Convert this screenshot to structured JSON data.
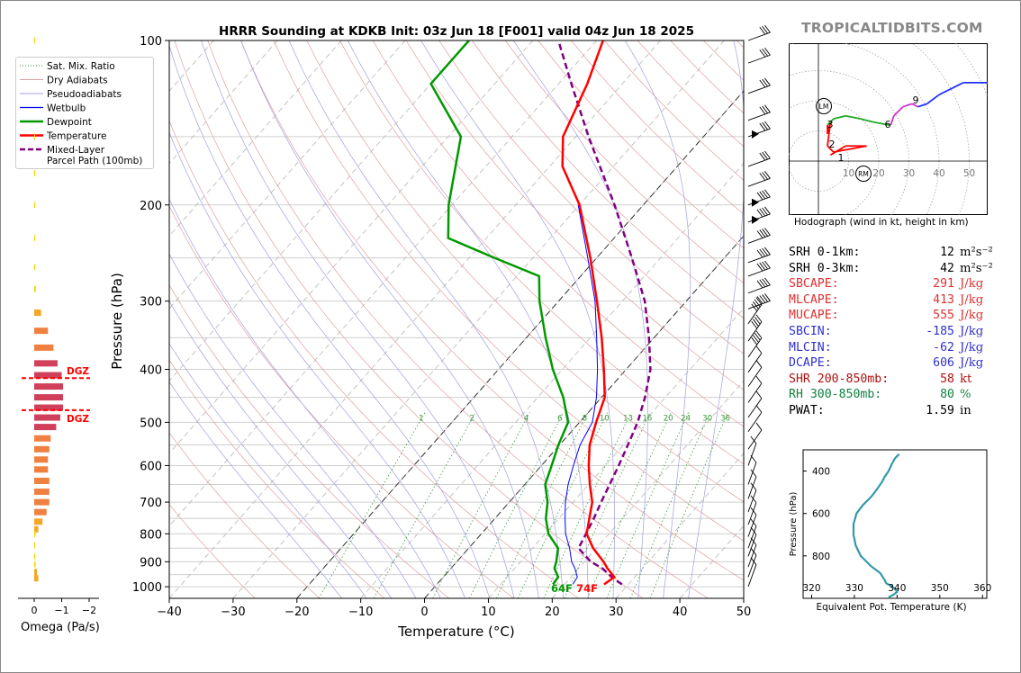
{
  "header": {
    "title": "HRRR Sounding at KDKB Init: 03z Jun 18 [F001] valid 04z Jun 18 2025",
    "brand": "TROPICALTIDBITS.COM"
  },
  "legend": {
    "items": [
      {
        "label": "Sat. Mix. Ratio",
        "color": "#2e8b2e",
        "style": "dotted"
      },
      {
        "label": "Dry Adiabats",
        "color": "#d08080",
        "style": "solid-thin"
      },
      {
        "label": "Pseudoadiabats",
        "color": "#8080d0",
        "style": "solid-thin"
      },
      {
        "label": "Wetbulb",
        "color": "#0000ff",
        "style": "solid"
      },
      {
        "label": "Dewpoint",
        "color": "#009900",
        "style": "solid-thick"
      },
      {
        "label": "Temperature",
        "color": "#ff0000",
        "style": "solid-thick"
      },
      {
        "label": "Mixed-Layer\nParcel Path (100mb)",
        "color": "#800080",
        "style": "dashed"
      }
    ]
  },
  "omega": {
    "xlabel": "Omega (Pa/s)",
    "ticks": [
      "0",
      "−1",
      "−2"
    ],
    "dgz_label": "DGZ"
  },
  "chart_data": [
    {
      "type": "line",
      "title": "HRRR Sounding at KDKB Init: 03z Jun 18 [F001] valid 04z Jun 18 2025",
      "xlabel": "Temperature (°C)",
      "ylabel": "Pressure (hPa)",
      "x_ticks": [
        "−40",
        "−30",
        "−20",
        "−10",
        "0",
        "10",
        "20",
        "30",
        "40",
        "50"
      ],
      "y_ticks": [
        "100",
        "200",
        "300",
        "400",
        "500",
        "600",
        "700",
        "800",
        "900",
        "1000"
      ],
      "xlim": [
        -40,
        50
      ],
      "ylim": [
        1050,
        100
      ],
      "y_scale": "log",
      "skew": true,
      "grid": true,
      "legend_position": "left-outside",
      "surface_labels": {
        "dewpoint": "64F",
        "temperature": "74F"
      },
      "mixing_ratio_labels": [
        "1",
        "2",
        "4",
        "6",
        "8",
        "10",
        "13",
        "16",
        "20",
        "24",
        "30",
        "36"
      ],
      "series": [
        {
          "name": "Temperature",
          "color": "#ff0000",
          "points": [
            [
              990,
              26.2
            ],
            [
              960,
              26.8
            ],
            [
              925,
              24.5
            ],
            [
              900,
              23.0
            ],
            [
              850,
              19.5
            ],
            [
              800,
              16.5
            ],
            [
              750,
              14.8
            ],
            [
              700,
              13.0
            ],
            [
              650,
              10.2
            ],
            [
              600,
              7.4
            ],
            [
              550,
              4.7
            ],
            [
              500,
              2.6
            ],
            [
              450,
              0.5
            ],
            [
              400,
              -3.5
            ],
            [
              350,
              -8.2
            ],
            [
              300,
              -14.0
            ],
            [
              250,
              -21.0
            ],
            [
              200,
              -30.0
            ],
            [
              170,
              -38.0
            ],
            [
              150,
              -42.0
            ],
            [
              120,
              -45.5
            ],
            [
              100,
              -49.0
            ]
          ]
        },
        {
          "name": "Dewpoint",
          "color": "#009900",
          "points": [
            [
              990,
              18.2
            ],
            [
              960,
              18.0
            ],
            [
              925,
              16.2
            ],
            [
              900,
              15.6
            ],
            [
              850,
              14.0
            ],
            [
              800,
              10.5
            ],
            [
              750,
              8.0
            ],
            [
              700,
              6.0
            ],
            [
              650,
              3.2
            ],
            [
              600,
              1.6
            ],
            [
              550,
              -0.2
            ],
            [
              500,
              -1.8
            ],
            [
              450,
              -6.0
            ],
            [
              400,
              -11.5
            ],
            [
              350,
              -17.0
            ],
            [
              300,
              -23.0
            ],
            [
              270,
              -26.5
            ],
            [
              250,
              -36.0
            ],
            [
              230,
              -46.0
            ],
            [
              200,
              -50.5
            ],
            [
              150,
              -58.0
            ],
            [
              120,
              -70.0
            ],
            [
              100,
              -70.0
            ]
          ]
        },
        {
          "name": "Wetbulb",
          "color": "#0000ff",
          "points": [
            [
              990,
              21.3
            ],
            [
              960,
              21.0
            ],
            [
              925,
              19.4
            ],
            [
              900,
              18.0
            ],
            [
              850,
              15.8
            ],
            [
              800,
              13.2
            ],
            [
              750,
              11.0
            ],
            [
              700,
              8.8
            ],
            [
              650,
              6.8
            ],
            [
              600,
              5.0
            ],
            [
              550,
              3.2
            ],
            [
              500,
              2.0
            ],
            [
              450,
              -0.8
            ],
            [
              400,
              -4.5
            ],
            [
              350,
              -9.0
            ],
            [
              300,
              -14.3
            ],
            [
              250,
              -21.4
            ],
            [
              200,
              -30.2
            ]
          ]
        },
        {
          "name": "Mixed-Layer\nParcel Path (100mb)",
          "color": "#800080",
          "points": [
            [
              990,
              29.0
            ],
            [
              960,
              26.4
            ],
            [
              925,
              23.7
            ],
            [
              900,
              21.0
            ],
            [
              850,
              17.2
            ],
            [
              800,
              16.4
            ],
            [
              750,
              15.5
            ],
            [
              700,
              14.4
            ],
            [
              650,
              13.3
            ],
            [
              600,
              12.1
            ],
            [
              550,
              10.7
            ],
            [
              500,
              9.1
            ],
            [
              450,
              6.8
            ],
            [
              400,
              3.8
            ],
            [
              350,
              -0.8
            ],
            [
              300,
              -6.5
            ],
            [
              250,
              -14.5
            ],
            [
              200,
              -24.5
            ],
            [
              150,
              -38.0
            ],
            [
              120,
              -48.0
            ],
            [
              100,
              -56.0
            ]
          ]
        }
      ]
    },
    {
      "type": "scatter",
      "title": "Hodograph (wind in kt, height in km)",
      "ring_labels": [
        "10",
        "20",
        "30",
        "40",
        "50"
      ],
      "height_labels": [
        "1",
        "2",
        "3",
        "6",
        "9"
      ],
      "markers": [
        "LM",
        "RM"
      ],
      "points": [
        [
          4,
          2
        ],
        [
          9,
          5
        ],
        [
          16,
          5
        ],
        [
          5,
          3
        ],
        [
          3,
          5
        ],
        [
          4,
          13
        ],
        [
          3,
          9
        ],
        [
          3,
          12
        ],
        [
          5,
          14
        ],
        [
          9,
          15
        ],
        [
          14,
          14
        ],
        [
          18,
          13
        ],
        [
          23,
          12
        ],
        [
          24,
          12
        ],
        [
          25,
          15
        ],
        [
          26,
          16
        ],
        [
          28,
          18
        ],
        [
          31,
          19
        ],
        [
          33,
          18
        ],
        [
          36,
          19
        ],
        [
          40,
          22
        ],
        [
          48,
          26
        ],
        [
          53,
          26
        ],
        [
          57,
          26
        ]
      ]
    },
    {
      "type": "line",
      "xlabel": "Equivalent Pot. Temperature (K)",
      "ylabel": "Pressure (hPa)",
      "x_ticks": [
        "320",
        "330",
        "340",
        "350",
        "360"
      ],
      "y_ticks": [
        "400",
        "600",
        "800"
      ],
      "xlim": [
        318,
        361
      ],
      "ylim": [
        1000,
        300
      ],
      "points": [
        [
          995,
          338.0
        ],
        [
          985,
          339.0
        ],
        [
          970,
          340.0
        ],
        [
          955,
          339.5
        ],
        [
          940,
          338.5
        ],
        [
          930,
          337.5
        ],
        [
          910,
          337.0
        ],
        [
          880,
          336.0
        ],
        [
          850,
          334.0
        ],
        [
          800,
          331.5
        ],
        [
          750,
          330.3
        ],
        [
          700,
          329.8
        ],
        [
          650,
          329.8
        ],
        [
          600,
          330.5
        ],
        [
          560,
          332.0
        ],
        [
          520,
          334.0
        ],
        [
          480,
          335.5
        ],
        [
          450,
          336.5
        ],
        [
          430,
          337.0
        ],
        [
          400,
          338.0
        ],
        [
          370,
          338.7
        ],
        [
          340,
          339.5
        ],
        [
          320,
          340.5
        ]
      ]
    }
  ],
  "stats": {
    "rows": [
      {
        "label": "SRH 0-1km:",
        "value": "12",
        "unit": "m²s⁻²",
        "color": "#000000"
      },
      {
        "label": "SRH 0-3km:",
        "value": "42",
        "unit": "m²s⁻²",
        "color": "#000000"
      },
      {
        "label": "SBCAPE:",
        "value": "291",
        "unit": "J/kg",
        "color": "#e03030"
      },
      {
        "label": "MLCAPE:",
        "value": "413",
        "unit": "J/kg",
        "color": "#e03030"
      },
      {
        "label": "MUCAPE:",
        "value": "555",
        "unit": "J/kg",
        "color": "#e03030"
      },
      {
        "label": "SBCIN:",
        "value": "-185",
        "unit": "J/kg",
        "color": "#3030d0"
      },
      {
        "label": "MLCIN:",
        "value": "-62",
        "unit": "J/kg",
        "color": "#3030d0"
      },
      {
        "label": "DCAPE:",
        "value": "606",
        "unit": "J/kg",
        "color": "#3030d0"
      },
      {
        "label": "SHR 200-850mb:",
        "value": "58",
        "unit": "kt",
        "color": "#b01010"
      },
      {
        "label": "RH 300-850mb:",
        "value": "80",
        "unit": "%",
        "color": "#108040"
      },
      {
        "label": "PWAT:",
        "value": "1.59",
        "unit": "in",
        "color": "#000000"
      }
    ]
  }
}
